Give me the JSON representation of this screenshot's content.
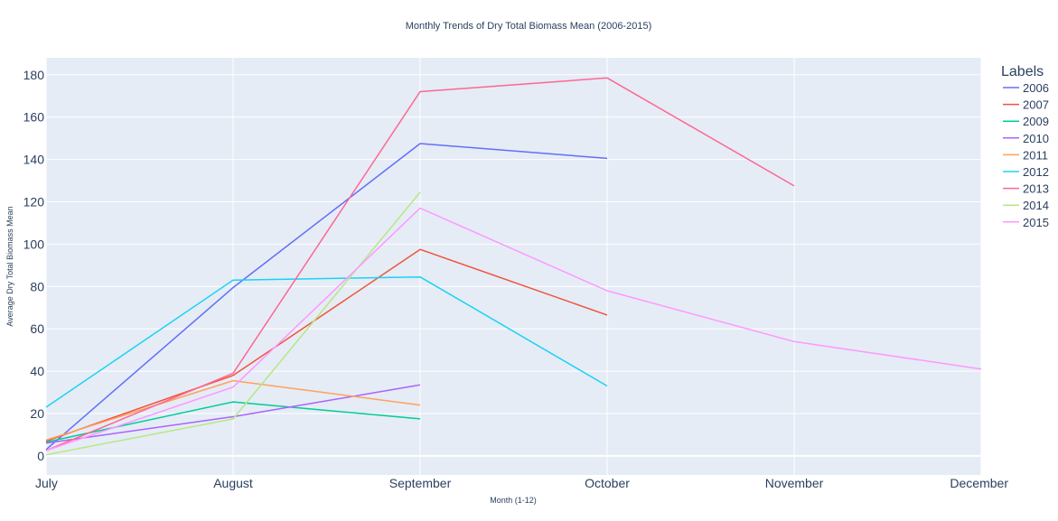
{
  "chart_data": {
    "type": "line",
    "title": "Monthly Trends of Dry Total Biomass Mean (2006-2015)",
    "xlabel": "Month (1-12)",
    "ylabel": "Average Dry Total Biomass Mean",
    "categories": [
      "July",
      "August",
      "September",
      "October",
      "November",
      "December"
    ],
    "y_ticks": [
      0,
      20,
      40,
      60,
      80,
      100,
      120,
      140,
      160,
      180
    ],
    "ylim": [
      -9,
      188
    ],
    "grid": true,
    "legend_title": "Labels",
    "legend_position": "top-right",
    "series": [
      {
        "name": "2006",
        "color": "#636efa",
        "values": [
          3,
          79.5,
          147.5,
          140.5,
          null,
          null
        ]
      },
      {
        "name": "2007",
        "color": "#EF553B",
        "values": [
          7,
          38,
          97.5,
          66.5,
          null,
          null
        ]
      },
      {
        "name": "2009",
        "color": "#00cc96",
        "values": [
          6.5,
          25.5,
          17.5,
          null,
          null,
          null
        ]
      },
      {
        "name": "2010",
        "color": "#ab63fa",
        "values": [
          6,
          18.5,
          33.5,
          null,
          null,
          null
        ]
      },
      {
        "name": "2011",
        "color": "#FFA15A",
        "values": [
          7.5,
          35.5,
          24,
          null,
          null,
          null
        ]
      },
      {
        "name": "2012",
        "color": "#19d3f3",
        "values": [
          23,
          83,
          84.5,
          33,
          null,
          null
        ]
      },
      {
        "name": "2013",
        "color": "#FF6692",
        "values": [
          2.5,
          39,
          172,
          178.5,
          127.5,
          null
        ]
      },
      {
        "name": "2014",
        "color": "#B6E880",
        "values": [
          0.5,
          17.5,
          124.5,
          null,
          null,
          null
        ]
      },
      {
        "name": "2015",
        "color": "#FF97FF",
        "values": [
          2.5,
          32.5,
          117,
          78,
          54,
          41
        ]
      }
    ]
  }
}
